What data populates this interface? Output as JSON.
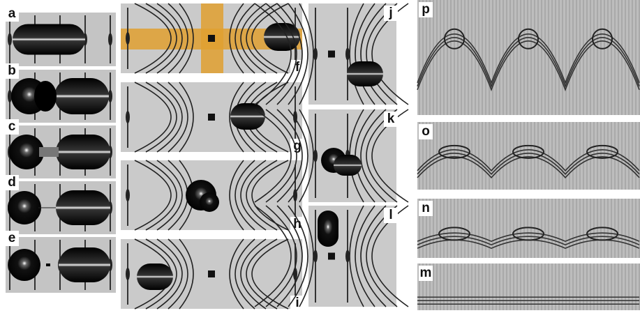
{
  "panels": [
    {
      "label": "a"
    },
    {
      "label": "b"
    },
    {
      "label": "c"
    },
    {
      "label": "d"
    },
    {
      "label": "e"
    },
    {
      "label": "f"
    },
    {
      "label": "g"
    },
    {
      "label": "h"
    },
    {
      "label": "i"
    },
    {
      "label": "j"
    },
    {
      "label": "k"
    },
    {
      "label": "l"
    },
    {
      "label": "p"
    },
    {
      "label": "o"
    },
    {
      "label": "n"
    },
    {
      "label": "m"
    }
  ]
}
